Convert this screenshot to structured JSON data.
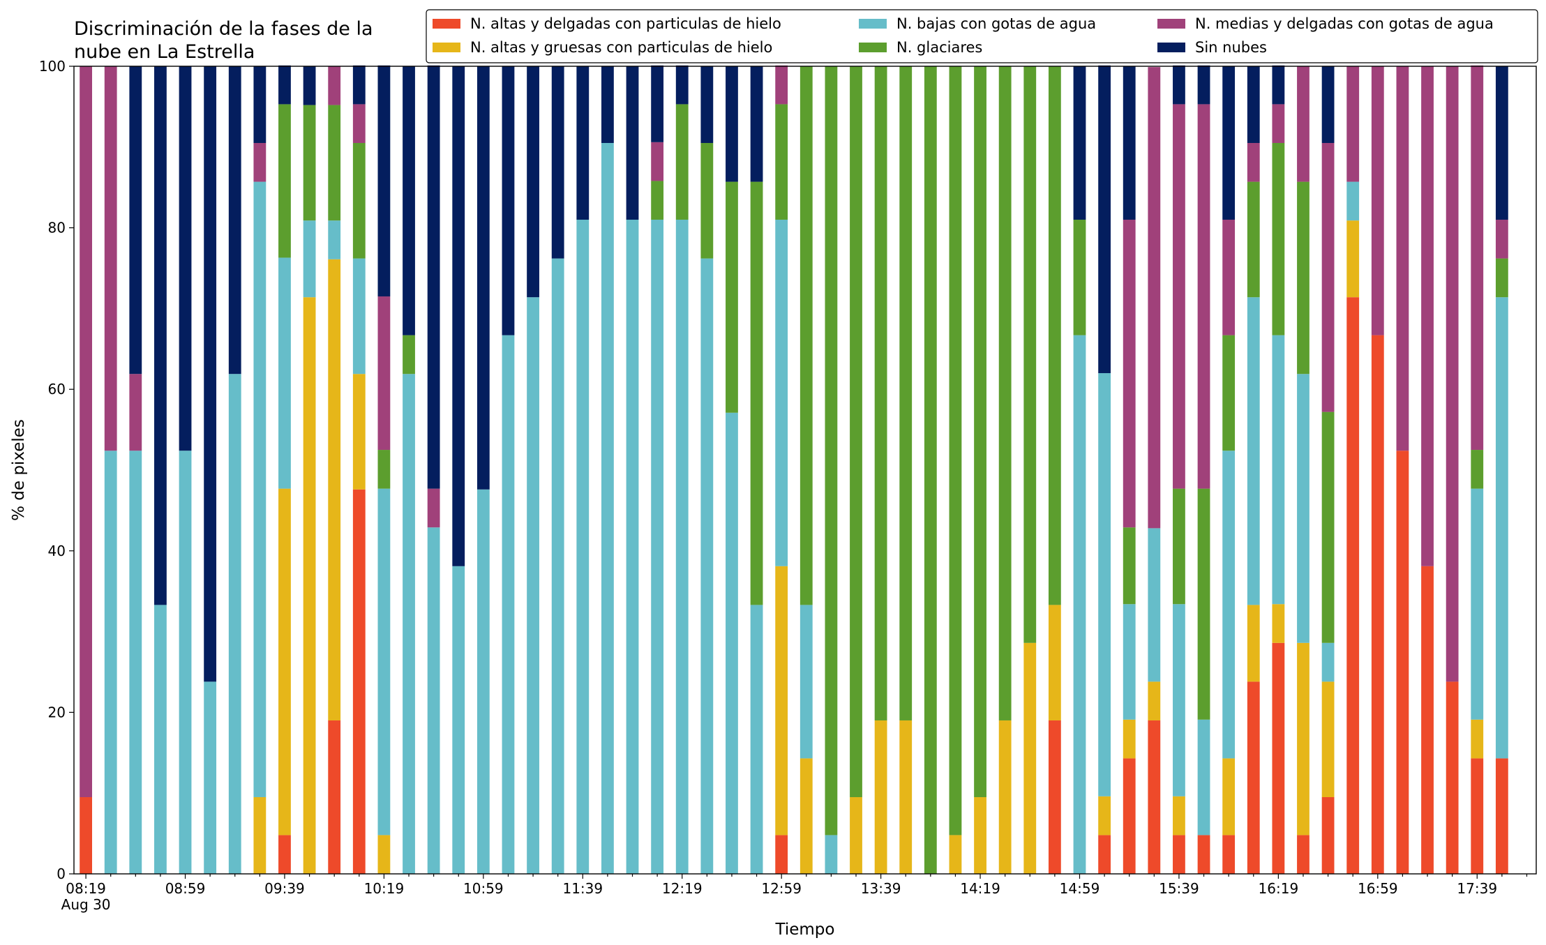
{
  "chart_data": {
    "type": "stacked_bar",
    "title": [
      "Discriminación de la fases de la",
      "nube en La Estrella"
    ],
    "x_label": "Tiempo",
    "y_label": "% de pixeles",
    "x_tick_sublabel": "Aug 30",
    "categories": [
      "08:19",
      null,
      null,
      null,
      "08:59",
      null,
      null,
      null,
      "09:39",
      null,
      null,
      null,
      "10:19",
      null,
      null,
      null,
      "10:59",
      null,
      null,
      null,
      "11:39",
      null,
      null,
      null,
      "12:19",
      null,
      null,
      null,
      "12:59",
      null,
      null,
      null,
      "13:39",
      null,
      null,
      null,
      "14:19",
      null,
      null,
      null,
      "14:59",
      null,
      null,
      null,
      "15:39",
      null,
      null,
      null,
      "16:19",
      null,
      null,
      null,
      "16:59",
      null,
      null,
      null,
      "17:39",
      null
    ],
    "ylim": [
      0,
      100
    ],
    "yticks": [
      0,
      20,
      40,
      60,
      80,
      100
    ],
    "legend": "upper right",
    "series": [
      {
        "name": "N. altas y delgadas con particulas de hielo",
        "color": "#ee4a2a",
        "values": [
          9.5,
          0,
          0,
          0,
          0,
          0,
          0,
          0,
          4.8,
          0,
          19,
          47.6,
          0,
          0,
          0,
          0,
          0,
          0,
          0,
          0,
          0,
          0,
          0,
          0,
          0,
          0,
          0,
          0,
          4.8,
          0,
          0,
          0,
          0,
          0,
          0,
          0,
          0,
          0,
          0,
          19,
          0,
          4.8,
          14.3,
          19,
          4.8,
          4.8,
          4.8,
          23.8,
          28.6,
          4.8,
          9.5,
          71.4,
          66.7,
          52.4,
          38.1,
          23.8,
          14.3,
          14.3
        ]
      },
      {
        "name": "N. altas y gruesas con particulas de hielo",
        "color": "#e6b619",
        "values": [
          0,
          0,
          0,
          0,
          0,
          0,
          0,
          9.5,
          42.9,
          71.4,
          57.1,
          14.3,
          4.8,
          0,
          0,
          0,
          0,
          0,
          0,
          0,
          0,
          0,
          0,
          0,
          0,
          0,
          0,
          0,
          33.3,
          14.3,
          0,
          9.5,
          19,
          19,
          0,
          4.8,
          9.5,
          19,
          28.6,
          14.3,
          0,
          4.8,
          4.8,
          4.8,
          4.8,
          0,
          9.5,
          9.5,
          4.8,
          23.8,
          14.3,
          9.5,
          0,
          0,
          0,
          0,
          4.8,
          0
        ]
      },
      {
        "name": "N. bajas con gotas de agua",
        "color": "#66bdc9",
        "values": [
          0,
          52.4,
          52.4,
          33.3,
          52.4,
          23.8,
          61.9,
          76.2,
          28.6,
          9.5,
          4.8,
          14.3,
          42.9,
          61.9,
          42.9,
          38.1,
          47.6,
          66.7,
          71.4,
          76.2,
          81,
          90.5,
          81,
          81,
          81,
          76.2,
          57.1,
          33.3,
          42.9,
          19,
          4.8,
          0,
          0,
          0,
          0,
          0,
          0,
          0,
          0,
          0,
          66.7,
          52.4,
          14.3,
          19,
          23.8,
          14.3,
          38.1,
          38.1,
          33.3,
          33.3,
          4.8,
          4.8,
          0,
          0,
          0,
          0,
          28.6,
          57.1
        ]
      },
      {
        "name": "N. glaciares",
        "color": "#5c9e2e",
        "values": [
          0,
          0,
          0,
          0,
          0,
          0,
          0,
          0,
          19,
          14.3,
          14.3,
          14.3,
          4.8,
          4.8,
          0,
          0,
          0,
          0,
          0,
          0,
          0,
          0,
          0,
          4.8,
          14.3,
          14.3,
          28.6,
          52.4,
          14.3,
          66.7,
          95.2,
          90.5,
          81,
          81,
          100,
          95.2,
          90.5,
          81,
          71.4,
          66.7,
          14.3,
          0,
          9.5,
          0,
          14.3,
          28.6,
          14.3,
          14.3,
          23.8,
          23.8,
          28.6,
          0,
          0,
          0,
          0,
          0,
          4.8,
          4.8
        ]
      },
      {
        "name": "N. medias y delgadas con gotas de agua",
        "color": "#a0417a",
        "values": [
          90.5,
          47.6,
          9.5,
          0,
          0,
          0,
          0,
          4.8,
          0,
          0,
          4.8,
          4.8,
          19,
          0,
          4.8,
          0,
          0,
          0,
          0,
          0,
          0,
          0,
          0,
          4.8,
          0,
          0,
          0,
          0,
          4.8,
          0,
          0,
          0,
          0,
          0,
          0,
          0,
          0,
          0,
          0,
          0,
          0,
          0,
          38.1,
          57.1,
          47.6,
          47.6,
          14.3,
          4.8,
          4.8,
          14.3,
          33.3,
          14.3,
          33.3,
          47.6,
          61.9,
          76.2,
          47.6,
          4.8
        ]
      },
      {
        "name": "Sin nubes",
        "color": "#041e5e",
        "values": [
          0,
          0,
          38.1,
          66.7,
          47.6,
          76.2,
          38.1,
          9.5,
          4.8,
          4.8,
          0,
          4.8,
          28.6,
          33.3,
          52.4,
          61.9,
          52.4,
          33.3,
          28.6,
          23.8,
          19,
          9.5,
          19,
          9.5,
          4.8,
          9.5,
          14.3,
          14.3,
          0,
          0,
          0,
          0,
          0,
          0,
          0,
          0,
          0,
          0,
          0,
          0,
          19,
          38.1,
          19,
          0,
          4.8,
          4.8,
          19,
          9.5,
          4.8,
          0,
          9.5,
          0,
          0,
          0,
          0,
          0,
          0,
          19
        ]
      }
    ]
  }
}
